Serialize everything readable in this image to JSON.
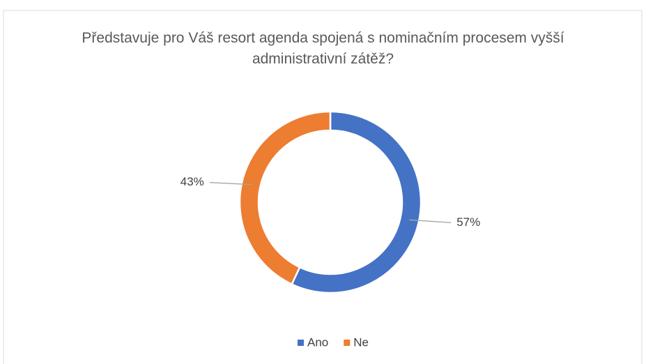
{
  "chart_data": {
    "type": "donut",
    "title": "Představuje pro Váš resort agenda spojená s nominačním procesem vyšší administrativní zátěž?",
    "categories": [
      "Ano",
      "Ne"
    ],
    "values": [
      57,
      43
    ],
    "value_labels": [
      "57%",
      "43%"
    ],
    "colors": [
      "#4472c4",
      "#ed7d31"
    ],
    "legend": "bottom"
  }
}
